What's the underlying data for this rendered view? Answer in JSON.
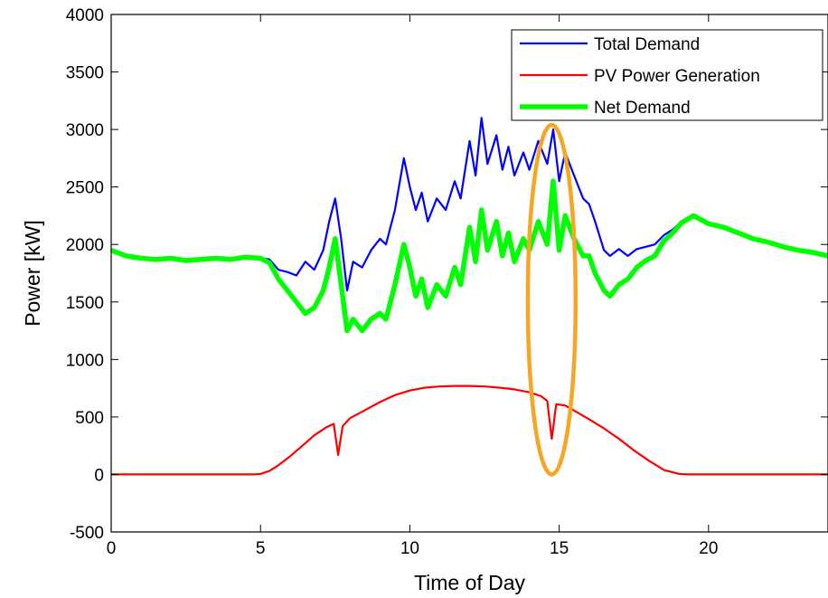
{
  "chart_data": {
    "type": "line",
    "title": "",
    "xlabel": "Time of Day",
    "ylabel": "Power [kW]",
    "xlim": [
      0,
      24
    ],
    "ylim": [
      -500,
      4000
    ],
    "xticks": [
      0,
      5,
      10,
      15,
      20
    ],
    "yticks": [
      -500,
      0,
      500,
      1000,
      1500,
      2000,
      2500,
      3000,
      3500,
      4000
    ],
    "grid": false,
    "legend_position": "top-right",
    "series": [
      {
        "name": "Total Demand",
        "color": "#0000ff",
        "points": [
          [
            0,
            1950
          ],
          [
            0.5,
            1900
          ],
          [
            1,
            1880
          ],
          [
            1.5,
            1870
          ],
          [
            2,
            1880
          ],
          [
            2.5,
            1860
          ],
          [
            3,
            1870
          ],
          [
            3.5,
            1880
          ],
          [
            4,
            1870
          ],
          [
            4.5,
            1890
          ],
          [
            5,
            1880
          ],
          [
            5.3,
            1870
          ],
          [
            5.6,
            1780
          ],
          [
            5.9,
            1760
          ],
          [
            6.2,
            1730
          ],
          [
            6.5,
            1850
          ],
          [
            6.8,
            1780
          ],
          [
            7.1,
            1950
          ],
          [
            7.3,
            2200
          ],
          [
            7.5,
            2400
          ],
          [
            7.7,
            2050
          ],
          [
            7.9,
            1600
          ],
          [
            8.1,
            1850
          ],
          [
            8.4,
            1800
          ],
          [
            8.7,
            1950
          ],
          [
            9.0,
            2050
          ],
          [
            9.2,
            2000
          ],
          [
            9.5,
            2300
          ],
          [
            9.8,
            2750
          ],
          [
            10.0,
            2500
          ],
          [
            10.2,
            2300
          ],
          [
            10.4,
            2450
          ],
          [
            10.6,
            2200
          ],
          [
            10.9,
            2400
          ],
          [
            11.2,
            2300
          ],
          [
            11.5,
            2550
          ],
          [
            11.7,
            2400
          ],
          [
            12.0,
            2900
          ],
          [
            12.2,
            2600
          ],
          [
            12.4,
            3100
          ],
          [
            12.6,
            2700
          ],
          [
            12.9,
            2950
          ],
          [
            13.1,
            2650
          ],
          [
            13.3,
            2850
          ],
          [
            13.5,
            2600
          ],
          [
            13.8,
            2800
          ],
          [
            14.0,
            2650
          ],
          [
            14.3,
            2900
          ],
          [
            14.6,
            2700
          ],
          [
            14.8,
            3000
          ],
          [
            15.0,
            2550
          ],
          [
            15.2,
            2800
          ],
          [
            15.5,
            2600
          ],
          [
            15.8,
            2400
          ],
          [
            16.0,
            2350
          ],
          [
            16.2,
            2200
          ],
          [
            16.5,
            1950
          ],
          [
            16.7,
            1900
          ],
          [
            17.0,
            1960
          ],
          [
            17.3,
            1900
          ],
          [
            17.6,
            1960
          ],
          [
            17.9,
            1980
          ],
          [
            18.2,
            2000
          ],
          [
            18.5,
            2080
          ],
          [
            18.8,
            2130
          ],
          [
            19.1,
            2200
          ],
          [
            19.5,
            2250
          ],
          [
            20.0,
            2180
          ],
          [
            20.5,
            2150
          ],
          [
            21.0,
            2100
          ],
          [
            21.5,
            2050
          ],
          [
            22.0,
            2020
          ],
          [
            22.5,
            1980
          ],
          [
            23.0,
            1950
          ],
          [
            23.5,
            1930
          ],
          [
            24.0,
            1900
          ]
        ]
      },
      {
        "name": "PV Power Generation",
        "color": "#ff0000",
        "points": [
          [
            0,
            0
          ],
          [
            4.8,
            0
          ],
          [
            5.0,
            5
          ],
          [
            5.3,
            30
          ],
          [
            5.6,
            80
          ],
          [
            6.0,
            160
          ],
          [
            6.4,
            250
          ],
          [
            6.8,
            340
          ],
          [
            7.2,
            410
          ],
          [
            7.45,
            440
          ],
          [
            7.6,
            170
          ],
          [
            7.75,
            420
          ],
          [
            8.0,
            490
          ],
          [
            8.5,
            560
          ],
          [
            9.0,
            630
          ],
          [
            9.5,
            690
          ],
          [
            10.0,
            730
          ],
          [
            10.5,
            755
          ],
          [
            11.0,
            765
          ],
          [
            11.5,
            770
          ],
          [
            12.0,
            770
          ],
          [
            12.5,
            765
          ],
          [
            13.0,
            755
          ],
          [
            13.5,
            740
          ],
          [
            14.0,
            715
          ],
          [
            14.4,
            680
          ],
          [
            14.6,
            640
          ],
          [
            14.75,
            310
          ],
          [
            14.9,
            610
          ],
          [
            15.2,
            600
          ],
          [
            15.6,
            540
          ],
          [
            16.0,
            480
          ],
          [
            16.5,
            400
          ],
          [
            17.0,
            310
          ],
          [
            17.5,
            210
          ],
          [
            18.0,
            120
          ],
          [
            18.5,
            40
          ],
          [
            19.0,
            5
          ],
          [
            19.3,
            0
          ],
          [
            24.0,
            0
          ]
        ]
      },
      {
        "name": "Net Demand",
        "color": "#00ff00",
        "points": [
          [
            0,
            1950
          ],
          [
            0.5,
            1900
          ],
          [
            1,
            1880
          ],
          [
            1.5,
            1870
          ],
          [
            2,
            1880
          ],
          [
            2.5,
            1860
          ],
          [
            3,
            1870
          ],
          [
            3.5,
            1880
          ],
          [
            4,
            1870
          ],
          [
            4.5,
            1890
          ],
          [
            5,
            1880
          ],
          [
            5.3,
            1840
          ],
          [
            5.6,
            1700
          ],
          [
            5.9,
            1600
          ],
          [
            6.2,
            1500
          ],
          [
            6.5,
            1400
          ],
          [
            6.8,
            1450
          ],
          [
            7.1,
            1600
          ],
          [
            7.3,
            1800
          ],
          [
            7.5,
            2050
          ],
          [
            7.7,
            1650
          ],
          [
            7.9,
            1250
          ],
          [
            8.1,
            1350
          ],
          [
            8.4,
            1250
          ],
          [
            8.7,
            1350
          ],
          [
            9.0,
            1400
          ],
          [
            9.2,
            1350
          ],
          [
            9.5,
            1650
          ],
          [
            9.8,
            2000
          ],
          [
            10.0,
            1800
          ],
          [
            10.2,
            1550
          ],
          [
            10.4,
            1700
          ],
          [
            10.6,
            1450
          ],
          [
            10.9,
            1650
          ],
          [
            11.2,
            1550
          ],
          [
            11.5,
            1800
          ],
          [
            11.7,
            1650
          ],
          [
            12.0,
            2150
          ],
          [
            12.2,
            1850
          ],
          [
            12.4,
            2300
          ],
          [
            12.6,
            1950
          ],
          [
            12.9,
            2200
          ],
          [
            13.1,
            1900
          ],
          [
            13.3,
            2100
          ],
          [
            13.5,
            1850
          ],
          [
            13.8,
            2050
          ],
          [
            14.0,
            1950
          ],
          [
            14.3,
            2200
          ],
          [
            14.6,
            2000
          ],
          [
            14.8,
            2550
          ],
          [
            15.0,
            1950
          ],
          [
            15.2,
            2250
          ],
          [
            15.5,
            2050
          ],
          [
            15.8,
            1900
          ],
          [
            16.0,
            1900
          ],
          [
            16.2,
            1750
          ],
          [
            16.5,
            1600
          ],
          [
            16.7,
            1550
          ],
          [
            17.0,
            1650
          ],
          [
            17.3,
            1700
          ],
          [
            17.6,
            1800
          ],
          [
            17.9,
            1860
          ],
          [
            18.2,
            1900
          ],
          [
            18.5,
            2030
          ],
          [
            18.8,
            2100
          ],
          [
            19.1,
            2190
          ],
          [
            19.5,
            2250
          ],
          [
            20.0,
            2180
          ],
          [
            20.5,
            2150
          ],
          [
            21.0,
            2100
          ],
          [
            21.5,
            2050
          ],
          [
            22.0,
            2020
          ],
          [
            22.5,
            1980
          ],
          [
            23.0,
            1950
          ],
          [
            23.5,
            1930
          ],
          [
            24.0,
            1900
          ]
        ]
      }
    ],
    "annotations": [
      {
        "type": "ellipse",
        "color": "#f5a623",
        "x_center": 14.75,
        "y_center": 1520,
        "x_radius": 0.8,
        "y_radius": 1520
      }
    ]
  }
}
